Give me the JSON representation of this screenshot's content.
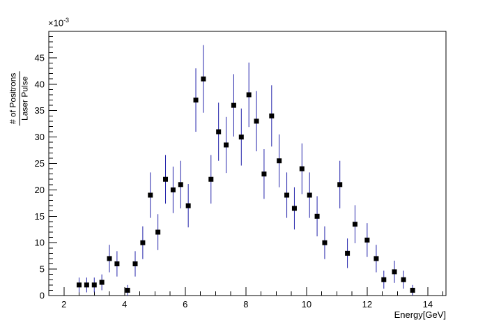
{
  "chart": {
    "exponent_label": "×10",
    "exponent_power": "-3",
    "x_title": "Energy[GeV]",
    "y_title_numerator": "# of Positrons",
    "y_title_denominator": "Laser Pulse"
  },
  "chart_data": {
    "type": "scatter",
    "title": "",
    "xlabel": "Energy[GeV]",
    "ylabel": "# of Positrons / Laser Pulse (×10^-3)",
    "xlim": [
      1.5,
      14.6
    ],
    "ylim": [
      0,
      50
    ],
    "x_major_ticks": [
      2,
      4,
      6,
      8,
      10,
      12,
      14
    ],
    "y_major_ticks": [
      0,
      5,
      10,
      15,
      20,
      25,
      30,
      35,
      40,
      45
    ],
    "x_minor_step": 0.5,
    "y_minor_step": 1,
    "grid": false,
    "legend": "none",
    "marker": "filled-square",
    "marker_color": "#000000",
    "error_bar_color": "#2222aa",
    "background": "#ffffff",
    "point_format": [
      "x",
      "y",
      "err"
    ],
    "points": [
      [
        2.5,
        2,
        1.4
      ],
      [
        2.75,
        2,
        1.4
      ],
      [
        3.0,
        2,
        1.4
      ],
      [
        3.25,
        2.5,
        1.5
      ],
      [
        3.5,
        7,
        2.6
      ],
      [
        3.75,
        6,
        2.4
      ],
      [
        4.1,
        1,
        1.0
      ],
      [
        4.35,
        6,
        2.4
      ],
      [
        4.6,
        10,
        3.1
      ],
      [
        4.85,
        19,
        4.3
      ],
      [
        5.1,
        12,
        3.4
      ],
      [
        5.35,
        22,
        4.6
      ],
      [
        5.6,
        20,
        4.4
      ],
      [
        5.85,
        21,
        4.5
      ],
      [
        6.1,
        17,
        4.1
      ],
      [
        6.35,
        37,
        6.0
      ],
      [
        6.6,
        41,
        6.4
      ],
      [
        6.85,
        22,
        4.6
      ],
      [
        7.1,
        31,
        5.5
      ],
      [
        7.35,
        28.5,
        5.3
      ],
      [
        7.6,
        36,
        5.9
      ],
      [
        7.85,
        30,
        5.4
      ],
      [
        8.1,
        38,
        6.1
      ],
      [
        8.35,
        33,
        5.7
      ],
      [
        8.6,
        23,
        4.7
      ],
      [
        8.85,
        34,
        5.8
      ],
      [
        9.1,
        25.5,
        5.0
      ],
      [
        9.35,
        19,
        4.3
      ],
      [
        9.6,
        16.5,
        4.0
      ],
      [
        9.85,
        24,
        4.8
      ],
      [
        10.1,
        19,
        4.3
      ],
      [
        10.35,
        15,
        3.8
      ],
      [
        10.6,
        10,
        3.1
      ],
      [
        11.1,
        21,
        4.5
      ],
      [
        11.35,
        8,
        2.8
      ],
      [
        11.6,
        13.5,
        3.6
      ],
      [
        12.0,
        10.5,
        3.2
      ],
      [
        12.3,
        7,
        2.6
      ],
      [
        12.55,
        3,
        1.7
      ],
      [
        12.9,
        4.5,
        2.1
      ],
      [
        13.2,
        3,
        1.7
      ],
      [
        13.5,
        1,
        1.0
      ]
    ]
  }
}
